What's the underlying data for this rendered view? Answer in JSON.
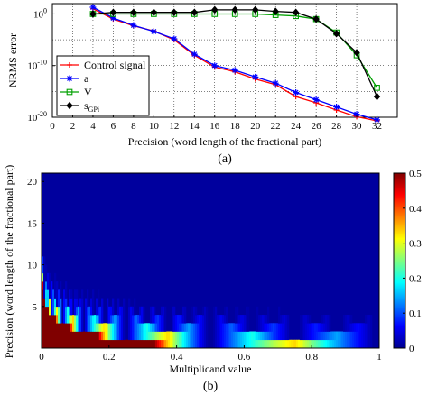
{
  "chart_data": [
    {
      "type": "line",
      "caption": "(a)",
      "xlabel": "Precision (word length of the fractional part)",
      "ylabel": "NRMS error",
      "xlim": [
        0,
        34
      ],
      "x_ticks": [
        "0",
        "2",
        "4",
        "6",
        "8",
        "10",
        "12",
        "14",
        "16",
        "18",
        "20",
        "22",
        "24",
        "26",
        "28",
        "30",
        "32"
      ],
      "y_scale": "log",
      "ylim_exponent": [
        -20,
        2
      ],
      "y_ticks": [
        {
          "exp": 0,
          "label": "10",
          "sup": "0"
        },
        {
          "exp": -10,
          "label": "10",
          "sup": "-10"
        },
        {
          "exp": -20,
          "label": "10",
          "sup": "-20"
        }
      ],
      "grid": true,
      "legend_position": "bottom-left",
      "series": [
        {
          "name": "Control signal",
          "color": "#ff0000",
          "marker": "plus",
          "x": [
            4,
            6,
            8,
            10,
            12,
            14,
            16,
            18,
            20,
            22,
            24,
            26,
            28,
            30,
            32
          ],
          "log10_y": [
            1,
            -1,
            -2.3,
            -3.3,
            -5,
            -8,
            -10.3,
            -11.2,
            -12.6,
            -13.7,
            -16,
            -17.2,
            -18.6,
            -19.9,
            -20.7
          ]
        },
        {
          "name": "a",
          "color": "#0000ff",
          "marker": "star",
          "x": [
            4,
            6,
            8,
            10,
            12,
            14,
            16,
            18,
            20,
            22,
            24,
            26,
            28,
            30,
            32
          ],
          "log10_y": [
            1.3,
            -0.8,
            -2.2,
            -3.4,
            -4.8,
            -7.8,
            -10,
            -10.9,
            -12.2,
            -13.4,
            -15.2,
            -16.6,
            -18,
            -19.4,
            -20.5
          ]
        },
        {
          "name": "V",
          "color": "#00a000",
          "marker": "square",
          "x": [
            4,
            6,
            8,
            10,
            12,
            14,
            16,
            18,
            20,
            22,
            24,
            26,
            28,
            30,
            32
          ],
          "log10_y": [
            0,
            0,
            0,
            0,
            0,
            0,
            0,
            0,
            0,
            -0.2,
            -0.4,
            -1,
            -3.6,
            -8,
            -14.3
          ]
        },
        {
          "name": "s",
          "name_sub": "GPi",
          "color": "#000000",
          "marker": "diamond",
          "x": [
            4,
            6,
            8,
            10,
            12,
            14,
            16,
            18,
            20,
            22,
            24,
            26,
            28,
            30,
            32
          ],
          "log10_y": [
            0,
            0.3,
            0.3,
            0.3,
            0.3,
            0.3,
            0.8,
            0.8,
            0.8,
            0.5,
            0.3,
            -1,
            -3.8,
            -7.5,
            -16
          ]
        }
      ]
    },
    {
      "type": "heatmap",
      "caption": "(b)",
      "xlabel": "Multiplicand value",
      "ylabel": "Precision (word length of the fractional part)",
      "xlim": [
        0,
        1
      ],
      "ylim": [
        0,
        21
      ],
      "x_ticks": [
        "0",
        "0.2",
        "0.4",
        "0.6",
        "0.8",
        "1"
      ],
      "y_ticks": [
        "5",
        "10",
        "15",
        "20"
      ],
      "colorbar": {
        "min": 0,
        "max": 0.5,
        "ticks": [
          "0",
          "0.1",
          "0.2",
          "0.3",
          "0.4",
          "0.5"
        ],
        "colormap": "jet"
      },
      "description_values": {
        "rows": 21,
        "max_error_at_precision_1": 0.5,
        "error_zero_above_precision": 15
      }
    }
  ]
}
